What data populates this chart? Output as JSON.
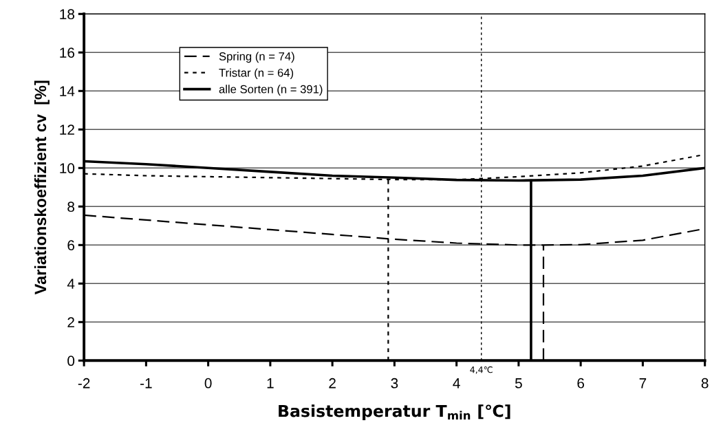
{
  "chart_data": {
    "type": "line",
    "xlabel": "Basistemperatur T$_{min}$ [℃]",
    "ylabel": "Variationskoeffizient cv  [%]",
    "xlim": [
      -2,
      8
    ],
    "xticks": [
      -2,
      -1,
      0,
      1,
      2,
      3,
      4,
      5,
      6,
      7,
      8
    ],
    "ylim": [
      0,
      18
    ],
    "yticks": [
      0,
      2,
      4,
      6,
      8,
      10,
      12,
      14,
      16,
      18
    ],
    "grid": "y",
    "legend": "top left",
    "marker": "none",
    "ref_lines": [
      {
        "axis": "x",
        "value": 4.4,
        "label": "4,4℃",
        "color": "#000000",
        "line_style": "dotted"
      }
    ],
    "series": [
      {
        "name": "Spring (n = 74)",
        "color": "#000000",
        "line_style": "dashed",
        "x": [
          -2,
          -1,
          0,
          1,
          2,
          3,
          4,
          5,
          5.4,
          6,
          7,
          8
        ],
        "values": [
          7.55,
          7.3,
          7.05,
          6.8,
          6.55,
          6.3,
          6.1,
          6.0,
          6.0,
          6.02,
          6.25,
          6.85
        ]
      },
      {
        "name": "Tristar (n = 64)",
        "color": "#000000",
        "line_style": "dotted",
        "x": [
          -2,
          -1,
          0,
          1,
          2,
          3,
          4,
          4.4,
          5,
          6,
          7,
          8
        ],
        "values": [
          9.7,
          9.6,
          9.55,
          9.5,
          9.45,
          9.4,
          9.4,
          9.45,
          9.55,
          9.75,
          10.1,
          10.7
        ]
      },
      {
        "name": "alle Sorten (n = 391)",
        "color": "#000000",
        "line_style": "solid",
        "x": [
          -2,
          -1,
          0,
          1,
          2,
          3,
          4,
          5,
          6,
          7,
          8
        ],
        "values": [
          10.35,
          10.2,
          10.0,
          9.8,
          9.6,
          9.5,
          9.38,
          9.35,
          9.4,
          9.6,
          10.0
        ]
      },
      {
        "color": "#000000",
        "line_style": "dashed",
        "x": [
          5.4,
          5.4
        ],
        "values": [
          0,
          6.0
        ]
      },
      {
        "color": "#000000",
        "line_style": "dotted",
        "x": [
          2.9,
          2.9
        ],
        "values": [
          0,
          9.4
        ]
      },
      {
        "color": "#000000",
        "line_style": "solid",
        "x": [
          5.2,
          5.2
        ],
        "values": [
          0,
          9.35
        ]
      }
    ]
  }
}
